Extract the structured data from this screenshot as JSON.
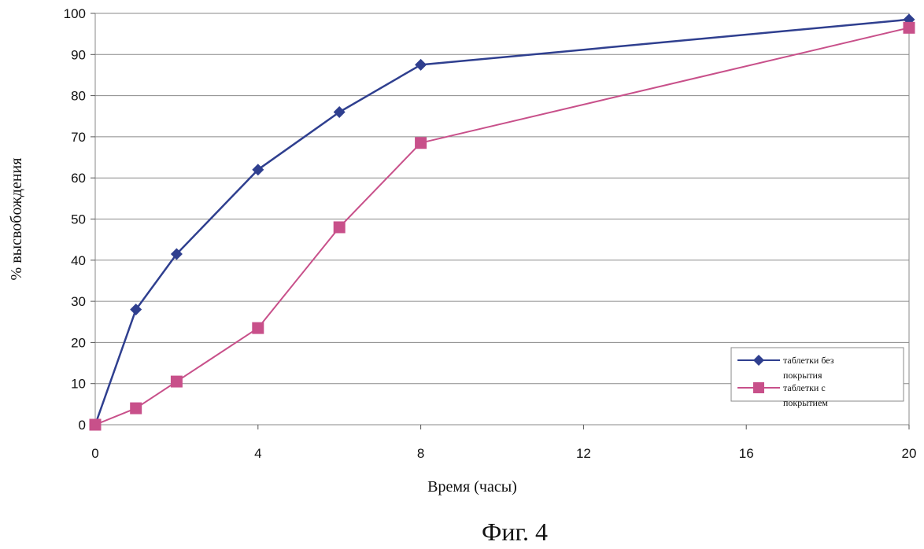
{
  "chart_data": {
    "type": "line",
    "title": "",
    "xlabel": "Время (часы)",
    "ylabel": "% высвобождения",
    "xlim": [
      0,
      20
    ],
    "ylim": [
      0,
      100
    ],
    "x_ticks": [
      "0",
      "4",
      "8",
      "12",
      "16",
      "20"
    ],
    "y_ticks": [
      "0",
      "10",
      "20",
      "30",
      "40",
      "50",
      "60",
      "70",
      "80",
      "90",
      "100"
    ],
    "grid": "horizontal",
    "legend_position": "bottom-right",
    "series": [
      {
        "name": "таблетки без покрытия",
        "color": "#2f3f8f",
        "marker": "diamond",
        "x": [
          0,
          1,
          2,
          4,
          6,
          8,
          20
        ],
        "y": [
          0,
          28,
          41.5,
          62,
          76,
          87.5,
          98.5
        ]
      },
      {
        "name": "таблетки с покрытием",
        "color": "#c8508a",
        "marker": "square",
        "x": [
          0,
          1,
          2,
          4,
          6,
          8,
          20
        ],
        "y": [
          0,
          4,
          10.5,
          23.5,
          48,
          68.5,
          96.5
        ]
      }
    ]
  },
  "figure_caption": "Фиг. 4"
}
